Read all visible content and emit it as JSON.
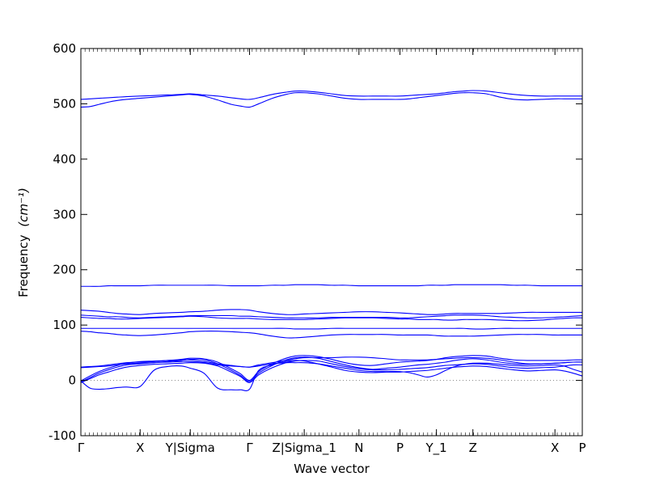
{
  "chart_data": {
    "type": "line",
    "xlabel": "Wave vector",
    "ylabel": "Frequency",
    "ylabel_unit": "(cm⁻¹)",
    "ylim": [
      -100,
      600
    ],
    "yticks": [
      -100,
      0,
      100,
      200,
      300,
      400,
      500,
      600
    ],
    "grid": false,
    "line_color": "#0000ff",
    "zero_line": {
      "y": 0,
      "style": "dotted",
      "color": "#808080"
    },
    "xticks": [
      {
        "label": "Γ",
        "x": 0.0
      },
      {
        "label": "X",
        "x": 0.65
      },
      {
        "label": "Y|Sigma",
        "x": 1.2
      },
      {
        "label": "Γ",
        "x": 1.85
      },
      {
        "label": "Z|Sigma_1",
        "x": 2.45
      },
      {
        "label": "N",
        "x": 3.05
      },
      {
        "label": "P",
        "x": 3.5
      },
      {
        "label": "Y_1",
        "x": 3.9
      },
      {
        "label": "Z",
        "x": 4.3
      },
      {
        "label": "X",
        "x": 5.2
      },
      {
        "label": "P",
        "x": 5.5
      }
    ],
    "x": [
      0.0,
      0.1,
      0.2,
      0.3,
      0.4,
      0.5,
      0.65,
      0.8,
      0.95,
      1.1,
      1.2,
      1.35,
      1.5,
      1.65,
      1.75,
      1.85,
      1.95,
      2.1,
      2.25,
      2.35,
      2.45,
      2.6,
      2.75,
      2.9,
      3.05,
      3.2,
      3.35,
      3.5,
      3.6,
      3.7,
      3.8,
      3.9,
      4.0,
      4.1,
      4.2,
      4.3,
      4.45,
      4.6,
      4.75,
      4.9,
      5.05,
      5.2,
      5.3,
      5.4,
      5.5
    ],
    "series": [
      {
        "values": [
          -1,
          8,
          16,
          22,
          27,
          31,
          34,
          35,
          36,
          38,
          40,
          39,
          33,
          21,
          12,
          0,
          16,
          30,
          40,
          44,
          45,
          43,
          38,
          32,
          28,
          27,
          30,
          33,
          34,
          35,
          36,
          38,
          41,
          43,
          44,
          45,
          44,
          40,
          37,
          36,
          36,
          36,
          36,
          37,
          37
        ]
      },
      {
        "values": [
          -3,
          5,
          13,
          19,
          24,
          28,
          30,
          32,
          34,
          36,
          38,
          37,
          30,
          18,
          9,
          -2,
          13,
          27,
          37,
          41,
          42,
          40,
          34,
          28,
          23,
          20,
          22,
          24,
          26,
          28,
          29,
          31,
          33,
          36,
          38,
          39,
          37,
          33,
          30,
          29,
          30,
          31,
          32,
          33,
          33
        ]
      },
      {
        "values": [
          -4,
          3,
          10,
          15,
          20,
          24,
          27,
          29,
          30,
          31,
          32,
          31,
          26,
          15,
          7,
          -4,
          10,
          23,
          32,
          35,
          36,
          35,
          30,
          25,
          21,
          19,
          19,
          20,
          21,
          22,
          23,
          25,
          27,
          28,
          29,
          30,
          29,
          26,
          23,
          22,
          23,
          24,
          26,
          28,
          28
        ]
      },
      {
        "values": [
          24,
          25,
          26,
          28,
          30,
          32,
          33,
          34,
          36,
          37,
          37,
          34,
          30,
          27,
          25,
          24,
          26,
          30,
          32,
          32,
          32,
          30,
          26,
          22,
          18,
          16,
          16,
          16,
          14,
          10,
          6,
          10,
          18,
          25,
          29,
          31,
          31,
          29,
          27,
          26,
          27,
          28,
          26,
          20,
          15
        ]
      },
      {
        "values": [
          23,
          24,
          25,
          26,
          28,
          30,
          31,
          32,
          33,
          34,
          34,
          32,
          28,
          26,
          25,
          24,
          28,
          32,
          36,
          39,
          41,
          41,
          41,
          42,
          42,
          41,
          39,
          37,
          37,
          37,
          37,
          38,
          39,
          40,
          41,
          41,
          40,
          37,
          33,
          30,
          30,
          31,
          32,
          33,
          33
        ]
      },
      {
        "values": [
          -1,
          -14,
          -16,
          -15,
          -13,
          -12,
          -11,
          18,
          25,
          26,
          22,
          13,
          -14,
          -17,
          -17,
          -16,
          18,
          28,
          34,
          36,
          35,
          30,
          24,
          18,
          15,
          14,
          15,
          15,
          16,
          17,
          18,
          20,
          22,
          24,
          25,
          26,
          25,
          22,
          19,
          17,
          18,
          19,
          17,
          13,
          8
        ]
      },
      {
        "values": [
          127,
          126,
          125,
          123,
          121,
          120,
          119,
          121,
          122,
          123,
          124,
          125,
          127,
          128,
          128,
          127,
          124,
          121,
          119,
          119,
          120,
          121,
          122,
          123,
          124,
          124,
          123,
          122,
          121,
          120,
          119,
          119,
          120,
          121,
          121,
          121,
          121,
          121,
          122,
          123,
          123,
          123,
          123,
          123,
          123
        ]
      },
      {
        "values": [
          118,
          117,
          116,
          115,
          115,
          114,
          113,
          114,
          115,
          116,
          117,
          117,
          117,
          117,
          116,
          116,
          115,
          114,
          113,
          113,
          113,
          113,
          114,
          114,
          114,
          114,
          114,
          113,
          113,
          114,
          115,
          116,
          117,
          118,
          118,
          118,
          117,
          115,
          114,
          113,
          113,
          114,
          115,
          116,
          117
        ]
      },
      {
        "values": [
          114,
          113,
          112,
          112,
          111,
          111,
          112,
          113,
          114,
          115,
          116,
          115,
          113,
          112,
          112,
          112,
          111,
          110,
          110,
          110,
          110,
          111,
          112,
          113,
          113,
          113,
          112,
          111,
          111,
          110,
          110,
          110,
          109,
          109,
          110,
          110,
          110,
          109,
          108,
          108,
          109,
          111,
          112,
          113,
          113
        ]
      },
      {
        "values": [
          94,
          94,
          94,
          94,
          94,
          94,
          94,
          94,
          94,
          94,
          94,
          94,
          94,
          94,
          94,
          94,
          94,
          94,
          94,
          93,
          93,
          93,
          94,
          94,
          94,
          94,
          94,
          94,
          94,
          94,
          94,
          94,
          94,
          94,
          94,
          93,
          93,
          94,
          94,
          94,
          94,
          94,
          94,
          94,
          94
        ]
      },
      {
        "values": [
          89,
          88,
          86,
          85,
          83,
          82,
          81,
          82,
          84,
          86,
          88,
          89,
          89,
          88,
          87,
          86,
          84,
          80,
          77,
          77,
          78,
          80,
          82,
          83,
          83,
          83,
          83,
          82,
          82,
          82,
          82,
          81,
          80,
          80,
          80,
          80,
          81,
          82,
          83,
          83,
          83,
          82,
          82,
          82,
          82
        ]
      },
      {
        "values": [
          170,
          170,
          170,
          171,
          171,
          171,
          171,
          172,
          172,
          172,
          172,
          172,
          172,
          171,
          171,
          171,
          171,
          172,
          172,
          173,
          173,
          173,
          172,
          172,
          171,
          171,
          171,
          171,
          171,
          171,
          172,
          172,
          172,
          173,
          173,
          173,
          173,
          173,
          172,
          172,
          171,
          171,
          171,
          171,
          171
        ]
      },
      {
        "values": [
          508,
          509,
          510,
          511,
          512,
          513,
          514,
          515,
          516,
          517,
          518,
          516,
          514,
          511,
          509,
          508,
          511,
          517,
          521,
          523,
          523,
          521,
          518,
          515,
          514,
          514,
          514,
          514,
          515,
          516,
          517,
          518,
          520,
          522,
          523,
          524,
          523,
          520,
          517,
          515,
          514,
          514,
          514,
          514,
          514
        ]
      },
      {
        "values": [
          494,
          495,
          499,
          503,
          506,
          508,
          510,
          512,
          514,
          516,
          517,
          514,
          507,
          499,
          496,
          494,
          500,
          510,
          517,
          520,
          520,
          518,
          514,
          510,
          508,
          508,
          508,
          508,
          509,
          511,
          513,
          515,
          517,
          519,
          520,
          520,
          518,
          512,
          508,
          507,
          508,
          509,
          509,
          509,
          509
        ]
      }
    ]
  }
}
